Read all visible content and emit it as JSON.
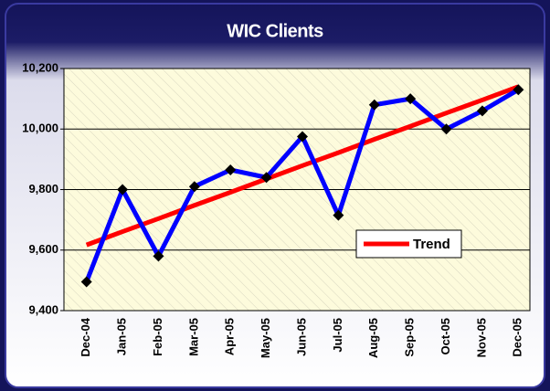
{
  "chart_data": {
    "type": "line",
    "title": "WIC Clients",
    "categories": [
      "Dec-04",
      "Jan-05",
      "Feb-05",
      "Mar-05",
      "Apr-05",
      "May-05",
      "Jun-05",
      "Jul-05",
      "Aug-05",
      "Sep-05",
      "Oct-05",
      "Nov-05",
      "Dec-05"
    ],
    "series": [
      {
        "color": "#0000ff",
        "values": [
          9495,
          9800,
          9580,
          9810,
          9865,
          9840,
          9975,
          9715,
          10080,
          10100,
          10000,
          10060,
          10130
        ]
      },
      {
        "name": "Trend",
        "color": "#ff0000",
        "values": [
          9617,
          9661,
          9704,
          9748,
          9791,
          9835,
          9879,
          9922,
          9966,
          10009,
          10053,
          10096,
          10140
        ]
      }
    ],
    "ylim": [
      9400,
      10200
    ],
    "yticks": [
      {
        "value": 9400,
        "label": "9,400"
      },
      {
        "value": 9600,
        "label": "9,600"
      },
      {
        "value": 9800,
        "label": "9,800"
      },
      {
        "value": 10000,
        "label": "10,000"
      },
      {
        "value": 10200,
        "label": "10,200"
      }
    ],
    "grid": true
  }
}
